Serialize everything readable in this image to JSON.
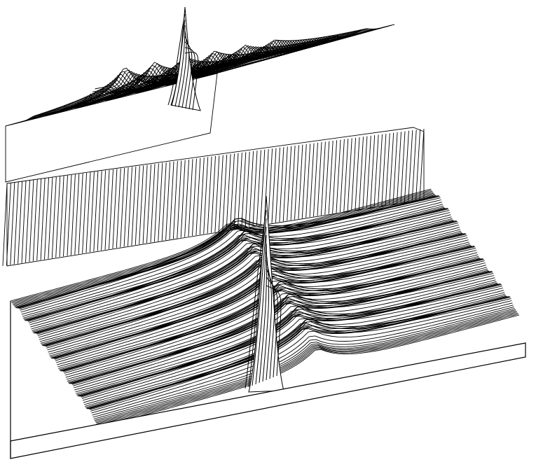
{
  "figure": {
    "type": "3d-wireframe-surface",
    "title": "",
    "background_color": "#ffffff",
    "line_color": "#000000",
    "regions": [
      {
        "name": "back-surface",
        "has_central_spike": true,
        "ridge_count": 6
      },
      {
        "name": "front-surface",
        "has_central_spike": true,
        "ridge_count": 9
      }
    ]
  }
}
